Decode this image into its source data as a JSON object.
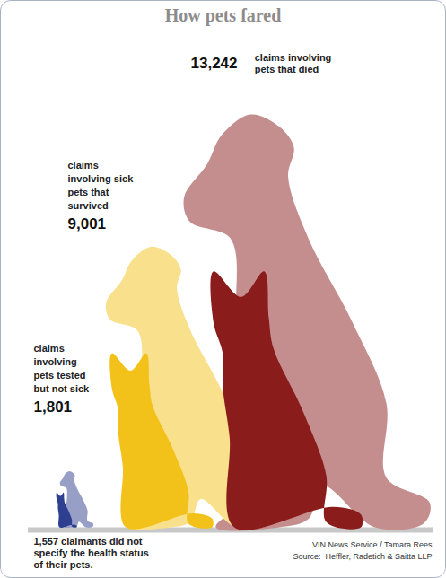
{
  "chart_data": {
    "type": "pictograph",
    "title": "How pets fared",
    "categories": [
      "claims involving pets tested but not sick",
      "claims involving sick pets that survived",
      "claims involving pets that died"
    ],
    "values": [
      1801,
      9001,
      13242
    ],
    "value_labels": [
      "1,801",
      "9,001",
      "13,242"
    ],
    "colors": [
      "#2e3f8f",
      "#f2c11a",
      "#8a1c1c"
    ],
    "data_labels": true,
    "tick_labels": false,
    "annotations": [
      {
        "value": 1557,
        "label": "1,557",
        "text": "claimants did not specify the health status of their pets."
      }
    ],
    "credit": "VIN News Service / Tamara Rees",
    "source": "Source:  Heffler, Radetich & Saitta LLP"
  }
}
